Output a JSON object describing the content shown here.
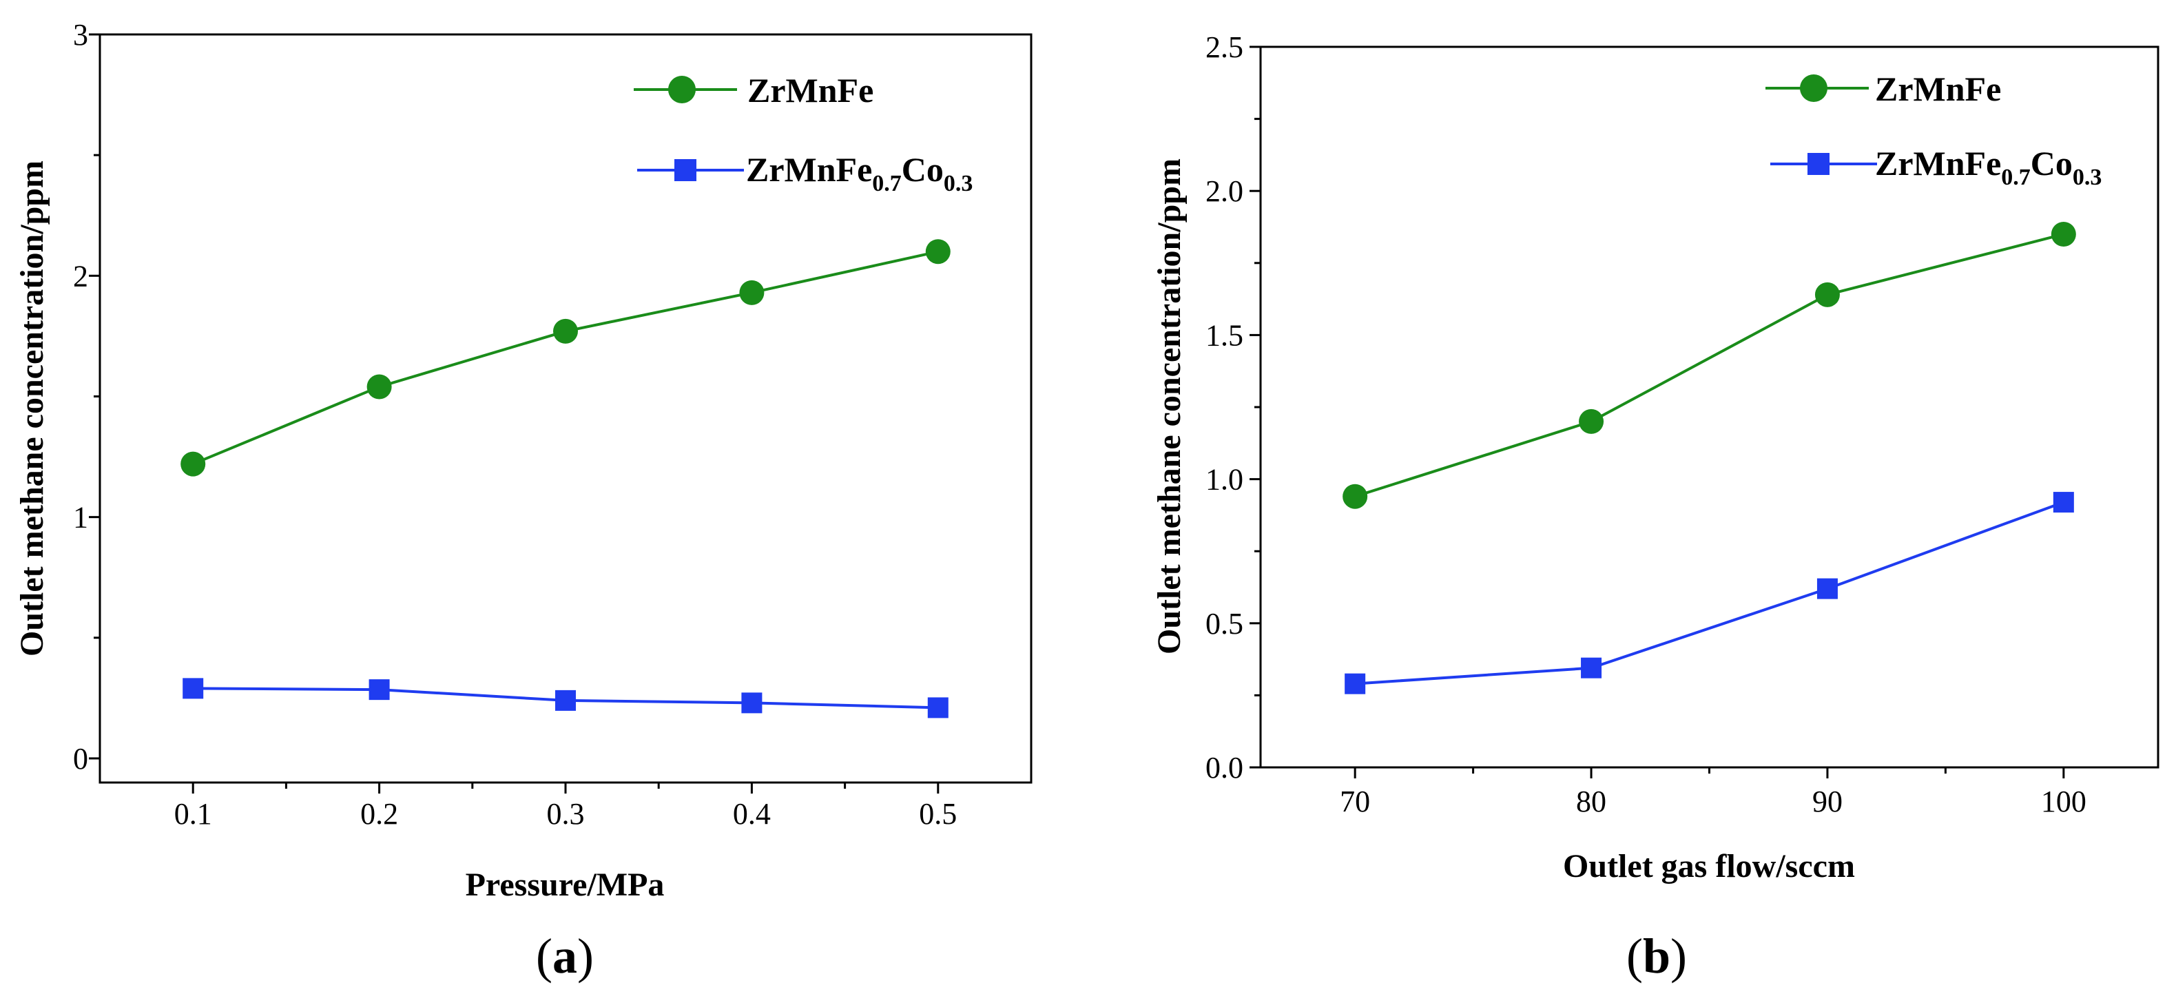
{
  "chart_data": [
    {
      "panel": "(a)",
      "panel_letter": "a",
      "type": "line",
      "xlabel": "Pressure/MPa",
      "ylabel": "Outlet methane concentration/ppm",
      "xlim": [
        0.05,
        0.55
      ],
      "ylim": [
        -0.1,
        3
      ],
      "x_ticks": [
        0.1,
        0.2,
        0.3,
        0.4,
        0.5
      ],
      "x_tick_labels": [
        "0.1",
        "0.2",
        "0.3",
        "0.4",
        "0.5"
      ],
      "x_minor_ticks": [
        0.15,
        0.25,
        0.35,
        0.45
      ],
      "y_ticks": [
        0,
        1,
        2,
        3
      ],
      "y_tick_labels": [
        "0",
        "1",
        "2",
        "3"
      ],
      "y_minor_ticks": [
        0.5,
        1.5,
        2.5
      ],
      "x": [
        0.1,
        0.2,
        0.3,
        0.4,
        0.5
      ],
      "series": [
        {
          "name": "ZrMnFe",
          "label_base": "ZrMnFe",
          "color": "#1a8c1a",
          "marker": "circle",
          "values": [
            1.22,
            1.54,
            1.77,
            1.93,
            2.1
          ]
        },
        {
          "name": "ZrMnFe0.7Co0.3",
          "label_base": "ZrMnFe",
          "label_sub1": "0.7",
          "label_mid": "Co",
          "label_sub2": "0.3",
          "color": "#1f3cf0",
          "marker": "square",
          "values": [
            0.29,
            0.285,
            0.24,
            0.23,
            0.21
          ]
        }
      ],
      "legend": "top-right"
    },
    {
      "panel": "(b)",
      "panel_letter": "b",
      "type": "line",
      "xlabel": "Outlet gas flow/sccm",
      "ylabel": "Outlet methane concentration/ppm",
      "xlim": [
        66,
        104
      ],
      "ylim": [
        0,
        2.5
      ],
      "x_ticks": [
        70,
        80,
        90,
        100
      ],
      "x_tick_labels": [
        "70",
        "80",
        "90",
        "100"
      ],
      "x_minor_ticks": [
        75,
        85,
        95
      ],
      "y_ticks": [
        0,
        0.5,
        1.0,
        1.5,
        2.0,
        2.5
      ],
      "y_tick_labels": [
        "0.0",
        "0.5",
        "1.0",
        "1.5",
        "2.0",
        "2.5"
      ],
      "y_minor_ticks": [
        0.25,
        0.75,
        1.25,
        1.75,
        2.25
      ],
      "x": [
        70,
        80,
        90,
        100
      ],
      "series": [
        {
          "name": "ZrMnFe",
          "label_base": "ZrMnFe",
          "color": "#1a8c1a",
          "marker": "circle",
          "values": [
            0.94,
            1.2,
            1.64,
            1.85
          ]
        },
        {
          "name": "ZrMnFe0.7Co0.3",
          "label_base": "ZrMnFe",
          "label_sub1": "0.7",
          "label_mid": "Co",
          "label_sub2": "0.3",
          "color": "#1f3cf0",
          "marker": "square",
          "values": [
            0.29,
            0.345,
            0.62,
            0.92
          ]
        }
      ],
      "legend": "top-right"
    }
  ]
}
